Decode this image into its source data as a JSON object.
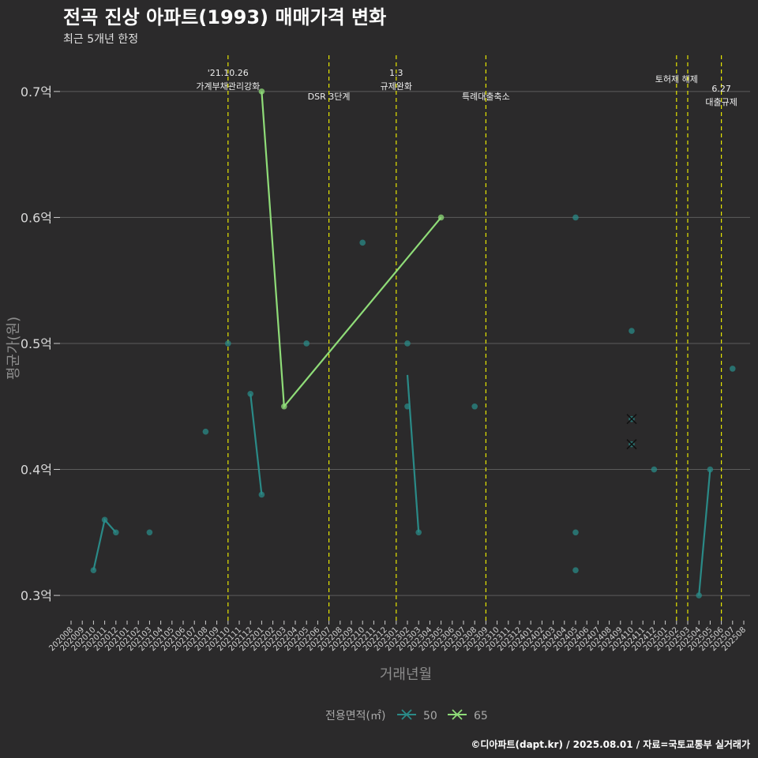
{
  "chart_data": {
    "type": "line",
    "title": "전곡 진상 아파트(1993) 매매가격 변화",
    "subtitle": "최근 5개년 한정",
    "xlabel": "거래년월",
    "ylabel": "평균가(원)",
    "caption": "©디아파트(dapt.kr) / 2025.08.01 / 자료=국토교통부 실거래가",
    "y_unit": "억",
    "ylim": [
      0.28,
      0.73
    ],
    "y_ticks": [
      0.3,
      0.4,
      0.5,
      0.6,
      0.7
    ],
    "y_tick_labels": [
      "0.3억",
      "0.4억",
      "0.5억",
      "0.6억",
      "0.7억"
    ],
    "months": [
      "202008",
      "202009",
      "202010",
      "202011",
      "202012",
      "202101",
      "202102",
      "202103",
      "202104",
      "202105",
      "202106",
      "202107",
      "202108",
      "202109",
      "202110",
      "202111",
      "202112",
      "202201",
      "202202",
      "202203",
      "202204",
      "202205",
      "202206",
      "202207",
      "202208",
      "202209",
      "202210",
      "202211",
      "202212",
      "202301",
      "202302",
      "202303",
      "202304",
      "202305",
      "202306",
      "202307",
      "202308",
      "202309",
      "202310",
      "202311",
      "202312",
      "202401",
      "202402",
      "202403",
      "202404",
      "202405",
      "202406",
      "202407",
      "202408",
      "202409",
      "202410",
      "202411",
      "202412",
      "202501",
      "202502",
      "202503",
      "202504",
      "202505",
      "202506",
      "202507",
      "202508"
    ],
    "legend_title": "전용면적(㎡)",
    "series": [
      {
        "name": "50",
        "color": "#2a8a87",
        "points": [
          {
            "x": "202010",
            "y": 0.32
          },
          {
            "x": "202011",
            "y": 0.36
          },
          {
            "x": "202012",
            "y": 0.35
          },
          {
            "x": "202103",
            "y": 0.35
          },
          {
            "x": "202108",
            "y": 0.43
          },
          {
            "x": "202110",
            "y": 0.5
          },
          {
            "x": "202112",
            "y": 0.46
          },
          {
            "x": "202201",
            "y": 0.38
          },
          {
            "x": "202205",
            "y": 0.5
          },
          {
            "x": "202210",
            "y": 0.58
          },
          {
            "x": "202302",
            "y": 0.5
          },
          {
            "x": "202302",
            "y": 0.45
          },
          {
            "x": "202303",
            "y": 0.35
          },
          {
            "x": "202308",
            "y": 0.45
          },
          {
            "x": "202405",
            "y": 0.6
          },
          {
            "x": "202405",
            "y": 0.35
          },
          {
            "x": "202405",
            "y": 0.32
          },
          {
            "x": "202410",
            "y": 0.51
          },
          {
            "x": "202410",
            "y": 0.44
          },
          {
            "x": "202410",
            "y": 0.42
          },
          {
            "x": "202412",
            "y": 0.4
          },
          {
            "x": "202504",
            "y": 0.3
          },
          {
            "x": "202505",
            "y": 0.4
          },
          {
            "x": "202507",
            "y": 0.48
          }
        ],
        "lines": [
          [
            {
              "x": "202010",
              "y": 0.32
            },
            {
              "x": "202011",
              "y": 0.36
            },
            {
              "x": "202012",
              "y": 0.35
            }
          ],
          [
            {
              "x": "202112",
              "y": 0.46
            },
            {
              "x": "202201",
              "y": 0.38
            }
          ],
          [
            {
              "x": "202302",
              "y": 0.475
            },
            {
              "x": "202303",
              "y": 0.35
            }
          ],
          [
            {
              "x": "202504",
              "y": 0.3
            },
            {
              "x": "202505",
              "y": 0.4
            }
          ]
        ],
        "crosses": [
          {
            "x": "202410",
            "y": 0.44
          },
          {
            "x": "202410",
            "y": 0.42
          }
        ]
      },
      {
        "name": "65",
        "color": "#8fdc78",
        "points": [
          {
            "x": "202201",
            "y": 0.7
          },
          {
            "x": "202203",
            "y": 0.45
          },
          {
            "x": "202305",
            "y": 0.6
          }
        ],
        "lines": [
          [
            {
              "x": "202201",
              "y": 0.7
            },
            {
              "x": "202203",
              "y": 0.45
            },
            {
              "x": "202305",
              "y": 0.6
            }
          ]
        ],
        "crosses": []
      }
    ],
    "events": [
      {
        "x": "202110",
        "lines": [
          "'21.10.26",
          "가계부채관리강화"
        ],
        "row": 0
      },
      {
        "x": "202207",
        "lines": [
          "DSR 3단계"
        ],
        "row": 2
      },
      {
        "x": "202301",
        "lines": [
          "1.3",
          "규제완화"
        ],
        "row": 0
      },
      {
        "x": "202309",
        "lines": [
          "특례대출축소"
        ],
        "row": 2
      },
      {
        "x": "202502",
        "lines": [
          "토허제 해제"
        ],
        "row": 1
      },
      {
        "x": "202503",
        "lines": [],
        "row": 1
      },
      {
        "x": "202506",
        "lines": [
          "6.27",
          "대출규제"
        ],
        "row": 1.7
      }
    ]
  }
}
